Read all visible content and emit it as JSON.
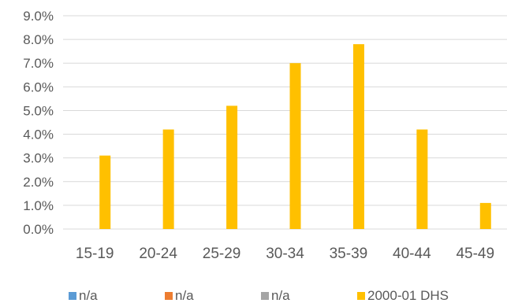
{
  "chart_data": {
    "type": "bar",
    "categories": [
      "15-19",
      "20-24",
      "25-29",
      "30-34",
      "35-39",
      "40-44",
      "45-49"
    ],
    "series": [
      {
        "name": "n/a",
        "color": "#5b9bd5",
        "values": [
          null,
          null,
          null,
          null,
          null,
          null,
          null
        ]
      },
      {
        "name": "n/a",
        "color": "#ed7d31",
        "values": [
          null,
          null,
          null,
          null,
          null,
          null,
          null
        ]
      },
      {
        "name": "n/a",
        "color": "#a5a5a5",
        "values": [
          null,
          null,
          null,
          null,
          null,
          null,
          null
        ]
      },
      {
        "name": "2000-01 DHS",
        "color": "#ffc000",
        "values": [
          3.1,
          4.2,
          5.2,
          7.0,
          7.8,
          4.2,
          1.1
        ]
      }
    ],
    "yticks": [
      "0.0%",
      "1.0%",
      "2.0%",
      "3.0%",
      "4.0%",
      "5.0%",
      "6.0%",
      "7.0%",
      "8.0%",
      "9.0%"
    ],
    "ylim": [
      0,
      9
    ],
    "grid": true,
    "legend_position": "bottom",
    "title": "",
    "xlabel": "",
    "ylabel": ""
  },
  "colors": {
    "gridline": "#d9d9d9",
    "tick_text": "#595959"
  }
}
